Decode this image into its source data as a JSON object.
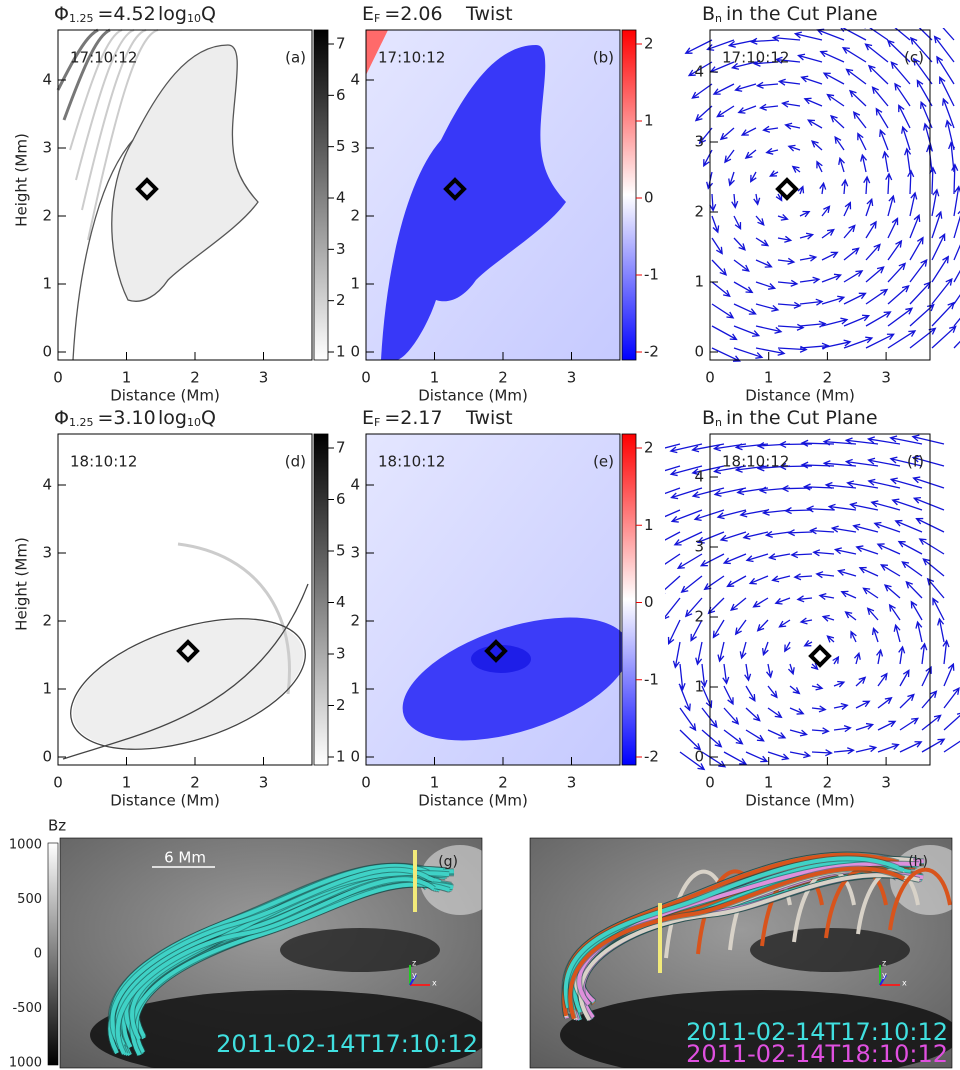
{
  "x_label": "Distance (Mm)",
  "y_label": "Height (Mm)",
  "panels": [
    {
      "label": "(a)",
      "time": "17:10:12",
      "title": {
        "main": "Φ",
        "sub": "1.25",
        "value": "=4.52"
      },
      "quantity": {
        "main": "log",
        "sub": "10",
        "tail": "Q"
      },
      "xticks": [
        0,
        1,
        2,
        3
      ],
      "yticks": [
        0,
        1,
        2,
        3,
        4
      ],
      "colorbar_ticks": [
        1,
        2,
        3,
        4,
        5,
        6,
        7
      ]
    },
    {
      "label": "(b)",
      "time": "17:10:12",
      "title": {
        "main": "E",
        "sub": "F",
        "value": "=2.06"
      },
      "quantity": {
        "main": "Twist"
      },
      "xticks": [
        0,
        1,
        2,
        3
      ],
      "yticks": [
        0,
        1,
        2,
        3,
        4
      ],
      "colorbar_ticks": [
        -2,
        -1,
        0,
        1,
        2
      ]
    },
    {
      "label": "(c)",
      "time": "17:10:12",
      "title": {
        "main": "B",
        "sub": "n",
        "value": "in the Cut Plane"
      },
      "xticks": [
        0,
        1,
        2,
        3
      ],
      "yticks": [
        0,
        1,
        2,
        3,
        4
      ]
    },
    {
      "label": "(d)",
      "time": "18:10:12",
      "title": {
        "main": "Φ",
        "sub": "1.25",
        "value": "=3.10"
      },
      "quantity": {
        "main": "log",
        "sub": "10",
        "tail": "Q"
      },
      "xticks": [
        0,
        1,
        2,
        3
      ],
      "yticks": [
        0,
        1,
        2,
        3,
        4
      ],
      "colorbar_ticks": [
        1,
        2,
        3,
        4,
        5,
        6,
        7
      ]
    },
    {
      "label": "(e)",
      "time": "18:10:12",
      "title": {
        "main": "E",
        "sub": "F",
        "value": "=2.17"
      },
      "quantity": {
        "main": "Twist"
      },
      "xticks": [
        0,
        1,
        2,
        3
      ],
      "yticks": [
        0,
        1,
        2,
        3,
        4
      ],
      "colorbar_ticks": [
        -2,
        -1,
        0,
        1,
        2
      ]
    },
    {
      "label": "(f)",
      "time": "18:10:12",
      "title": {
        "main": "B",
        "sub": "n",
        "value": "in the Cut Plane"
      },
      "xticks": [
        0,
        1,
        2,
        3
      ],
      "yticks": [
        0,
        1,
        2,
        3,
        4
      ]
    }
  ],
  "bz_colorbar": {
    "label": "Bz",
    "ticks": [
      1000,
      500,
      0,
      -500,
      1000
    ]
  },
  "views": [
    {
      "label": "(g)",
      "scale_bar": "6 Mm",
      "axes": [
        "z",
        "y",
        "x"
      ],
      "timestamps": [
        "2011-02-14T17:10:12"
      ]
    },
    {
      "label": "(h)",
      "axes": [
        "z",
        "y",
        "x"
      ],
      "timestamps": [
        "2011-02-14T17:10:12",
        "2011-02-14T18:10:12"
      ]
    }
  ]
}
